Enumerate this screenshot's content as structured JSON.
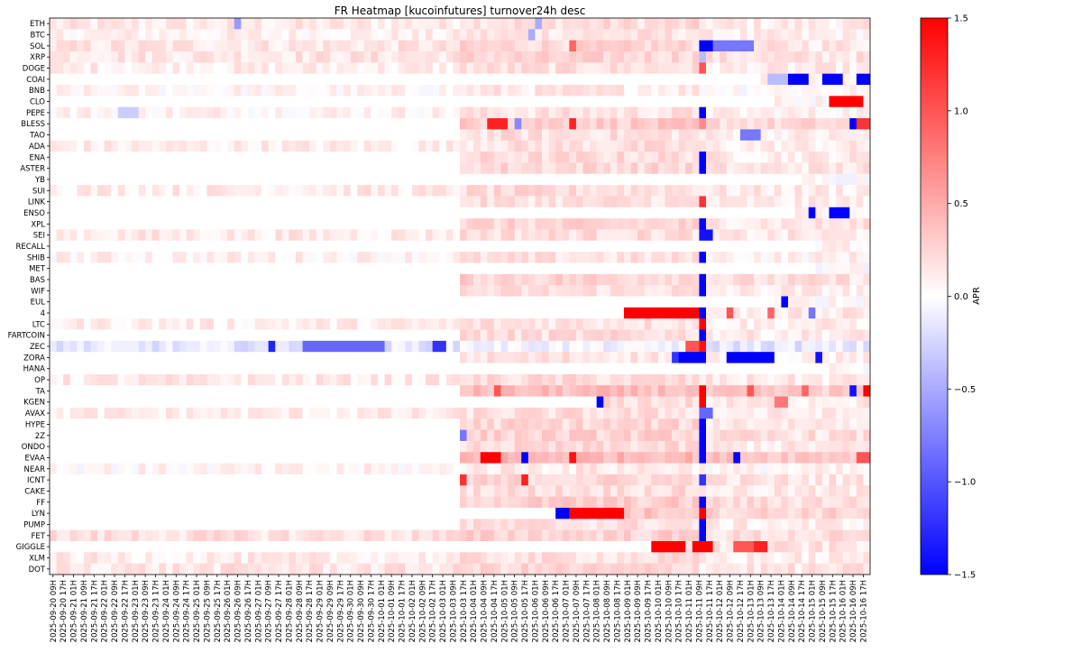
{
  "chart_data": {
    "type": "heatmap",
    "title": "FR Heatmap [kucoinfutures] turnover24h desc",
    "colorbar_label": "APR",
    "color_scale": {
      "min": -1.5,
      "max": 1.5,
      "ticks": [
        "1.5",
        "1.0",
        "0.5",
        "0.0",
        "−0.5",
        "−1.0",
        "−1.5"
      ],
      "tick_values": [
        1.5,
        1.0,
        0.5,
        0.0,
        -0.5,
        -1.0,
        -1.5
      ],
      "low_color": "#0000ff",
      "mid_color": "#ffffff",
      "high_color": "#ff0000"
    },
    "y_labels": [
      "ETH",
      "BTC",
      "SOL",
      "XRP",
      "DOGE",
      "COAI",
      "BNB",
      "CLO",
      "PEPE",
      "BLESS",
      "TAO",
      "ADA",
      "ENA",
      "ASTER",
      "YB",
      "SUI",
      "LINK",
      "ENSO",
      "XPL",
      "SEI",
      "RECALL",
      "SHIB",
      "MET",
      "BAS",
      "WIF",
      "EUL",
      "4",
      "LTC",
      "FARTCOIN",
      "ZEC",
      "ZORA",
      "HANA",
      "OP",
      "TA",
      "KGEN",
      "AVAX",
      "HYPE",
      "2Z",
      "ONDO",
      "EVAA",
      "NEAR",
      "ICNT",
      "CAKE",
      "FF",
      "LYN",
      "PUMP",
      "FET",
      "GIGGLE",
      "XLM",
      "DOT"
    ],
    "x_labels": [
      "2025-09-20 09H",
      "2025-09-20 17H",
      "2025-09-21 01H",
      "2025-09-21 09H",
      "2025-09-21 17H",
      "2025-09-22 01H",
      "2025-09-22 09H",
      "2025-09-22 17H",
      "2025-09-23 01H",
      "2025-09-23 09H",
      "2025-09-23 17H",
      "2025-09-24 01H",
      "2025-09-24 09H",
      "2025-09-24 17H",
      "2025-09-25 01H",
      "2025-09-25 09H",
      "2025-09-25 17H",
      "2025-09-26 01H",
      "2025-09-26 09H",
      "2025-09-26 17H",
      "2025-09-27 01H",
      "2025-09-27 09H",
      "2025-09-27 17H",
      "2025-09-28 01H",
      "2025-09-28 09H",
      "2025-09-28 17H",
      "2025-09-29 01H",
      "2025-09-29 09H",
      "2025-09-29 17H",
      "2025-09-30 01H",
      "2025-09-30 09H",
      "2025-09-30 17H",
      "2025-10-01 01H",
      "2025-10-01 09H",
      "2025-10-01 17H",
      "2025-10-02 01H",
      "2025-10-02 09H",
      "2025-10-02 17H",
      "2025-10-03 01H",
      "2025-10-03 09H",
      "2025-10-03 17H",
      "2025-10-04 01H",
      "2025-10-04 09H",
      "2025-10-04 17H",
      "2025-10-05 01H",
      "2025-10-05 09H",
      "2025-10-05 17H",
      "2025-10-06 01H",
      "2025-10-06 09H",
      "2025-10-06 17H",
      "2025-10-07 01H",
      "2025-10-07 09H",
      "2025-10-07 17H",
      "2025-10-08 01H",
      "2025-10-08 09H",
      "2025-10-08 17H",
      "2025-10-09 01H",
      "2025-10-09 09H",
      "2025-10-09 17H",
      "2025-10-10 01H",
      "2025-10-10 09H",
      "2025-10-10 17H",
      "2025-10-11 01H",
      "2025-10-11 09H",
      "2025-10-11 17H",
      "2025-10-12 01H",
      "2025-10-12 09H",
      "2025-10-12 17H",
      "2025-10-13 01H",
      "2025-10-13 09H",
      "2025-10-13 17H",
      "2025-10-14 01H",
      "2025-10-14 09H",
      "2025-10-14 17H",
      "2025-10-15 01H",
      "2025-10-15 09H",
      "2025-10-15 17H",
      "2025-10-16 01H",
      "2025-10-16 09H",
      "2025-10-16 17H"
    ],
    "x_tick_step": 1,
    "cols_per_tick": 1.5,
    "n_cols": 120,
    "grid": false,
    "base_values": {
      "ETH": 0.12,
      "BTC": 0.08,
      "SOL": 0.15,
      "XRP": 0.16,
      "DOGE": 0.1,
      "COAI": 0.05,
      "BNB": 0.05,
      "CLO": 0.05,
      "PEPE": 0.08,
      "BLESS": 0.22,
      "TAO": 0.1,
      "ADA": 0.1,
      "ENA": 0.12,
      "ASTER": 0.15,
      "YB": 0.02,
      "SUI": 0.12,
      "LINK": 0.1,
      "ENSO": 0.05,
      "XPL": 0.15,
      "SEI": 0.12,
      "RECALL": 0.05,
      "SHIB": 0.08,
      "MET": 0.02,
      "BAS": 0.18,
      "WIF": 0.1,
      "EUL": 0.05,
      "4": 0.12,
      "LTC": 0.1,
      "FARTCOIN": 0.12,
      "ZEC": -0.15,
      "ZORA": 0.08,
      "HANA": 0.02,
      "OP": 0.12,
      "TA": 0.3,
      "KGEN": 0.12,
      "AVAX": 0.1,
      "HYPE": 0.15,
      "2Z": 0.18,
      "ONDO": 0.12,
      "EVAA": 0.35,
      "NEAR": 0.05,
      "ICNT": 0.15,
      "CAKE": 0.12,
      "FF": 0.2,
      "LYN": 0.25,
      "PUMP": 0.1,
      "FET": 0.18,
      "GIGGLE": 0.15,
      "XLM": 0.1,
      "DOT": 0.15
    },
    "listing_col": {
      "ETH": 0,
      "BTC": 0,
      "SOL": 0,
      "XRP": 0,
      "DOGE": 0,
      "COAI": 104,
      "BNB": 1,
      "CLO": 106,
      "PEPE": 0,
      "BLESS": 60,
      "TAO": 60,
      "ADA": 0,
      "ENA": 60,
      "ASTER": 60,
      "YB": 110,
      "SUI": 0,
      "LINK": 60,
      "ENSO": 108,
      "XPL": 60,
      "SEI": 0,
      "RECALL": 112,
      "SHIB": 0,
      "MET": 112,
      "BAS": 60,
      "WIF": 60,
      "EUL": 106,
      "4": 84,
      "LTC": 0,
      "FARTCOIN": 60,
      "ZEC": 0,
      "ZORA": 60,
      "HANA": 114,
      "OP": 0,
      "TA": 60,
      "KGEN": 80,
      "AVAX": 0,
      "HYPE": 60,
      "2Z": 60,
      "ONDO": 60,
      "EVAA": 60,
      "NEAR": 0,
      "ICNT": 60,
      "CAKE": 60,
      "FF": 60,
      "LYN": 74,
      "PUMP": 60,
      "FET": 0,
      "GIGGLE": 88,
      "XLM": 0,
      "DOT": 0
    },
    "hotspots": [
      {
        "row": "ETH",
        "from": 27,
        "to": 28,
        "value": -0.6
      },
      {
        "row": "ETH",
        "from": 71,
        "to": 72,
        "value": -0.5
      },
      {
        "row": "BTC",
        "from": 70,
        "to": 71,
        "value": -0.5
      },
      {
        "row": "SOL",
        "from": 95,
        "to": 97,
        "value": -1.5
      },
      {
        "row": "SOL",
        "from": 97,
        "to": 103,
        "value": -0.8
      },
      {
        "row": "SOL",
        "from": 76,
        "to": 77,
        "value": 0.9
      },
      {
        "row": "XRP",
        "from": 95,
        "to": 96,
        "value": -0.4
      },
      {
        "row": "DOGE",
        "from": 95,
        "to": 96,
        "value": 1.0
      },
      {
        "row": "COAI",
        "from": 108,
        "to": 111,
        "value": -1.5
      },
      {
        "row": "COAI",
        "from": 113,
        "to": 116,
        "value": -1.5
      },
      {
        "row": "COAI",
        "from": 118,
        "to": 120,
        "value": -1.5
      },
      {
        "row": "COAI",
        "from": 105,
        "to": 108,
        "value": -0.4
      },
      {
        "row": "CLO",
        "from": 114,
        "to": 119,
        "value": 1.5
      },
      {
        "row": "PEPE",
        "from": 95,
        "to": 96,
        "value": -1.5
      },
      {
        "row": "PEPE",
        "from": 10,
        "to": 13,
        "value": -0.3
      },
      {
        "row": "BLESS",
        "from": 64,
        "to": 67,
        "value": 1.3
      },
      {
        "row": "BLESS",
        "from": 76,
        "to": 77,
        "value": 1.3
      },
      {
        "row": "BLESS",
        "from": 117,
        "to": 118,
        "value": -1.5
      },
      {
        "row": "BLESS",
        "from": 118,
        "to": 120,
        "value": 1.2
      },
      {
        "row": "BLESS",
        "from": 68,
        "to": 69,
        "value": -0.7
      },
      {
        "row": "BLESS",
        "from": 95,
        "to": 96,
        "value": 0.7
      },
      {
        "row": "TAO",
        "from": 101,
        "to": 104,
        "value": -0.8
      },
      {
        "row": "ENA",
        "from": 95,
        "to": 96,
        "value": -1.5
      },
      {
        "row": "ASTER",
        "from": 95,
        "to": 96,
        "value": -1.5
      },
      {
        "row": "LINK",
        "from": 95,
        "to": 96,
        "value": 1.2
      },
      {
        "row": "ENSO",
        "from": 111,
        "to": 112,
        "value": -1.5
      },
      {
        "row": "ENSO",
        "from": 114,
        "to": 117,
        "value": -1.5
      },
      {
        "row": "XPL",
        "from": 95,
        "to": 96,
        "value": -1.5
      },
      {
        "row": "SEI",
        "from": 95,
        "to": 97,
        "value": -1.4
      },
      {
        "row": "SHIB",
        "from": 95,
        "to": 96,
        "value": -1.5
      },
      {
        "row": "BAS",
        "from": 95,
        "to": 96,
        "value": -1.5
      },
      {
        "row": "WIF",
        "from": 95,
        "to": 96,
        "value": -1.5
      },
      {
        "row": "EUL",
        "from": 107,
        "to": 108,
        "value": -1.5
      },
      {
        "row": "4",
        "from": 84,
        "to": 95,
        "value": 1.5
      },
      {
        "row": "4",
        "from": 99,
        "to": 100,
        "value": 1.0
      },
      {
        "row": "4",
        "from": 105,
        "to": 106,
        "value": 0.9
      },
      {
        "row": "4",
        "from": 111,
        "to": 112,
        "value": -0.8
      },
      {
        "row": "4",
        "from": 95,
        "to": 96,
        "value": -1.5
      },
      {
        "row": "LTC",
        "from": 95,
        "to": 96,
        "value": 1.5
      },
      {
        "row": "FARTCOIN",
        "from": 95,
        "to": 96,
        "value": -1.5
      },
      {
        "row": "ZEC",
        "from": 37,
        "to": 49,
        "value": -0.9
      },
      {
        "row": "ZEC",
        "from": 56,
        "to": 58,
        "value": -1.2
      },
      {
        "row": "ZEC",
        "from": 32,
        "to": 33,
        "value": -1.3
      },
      {
        "row": "ZEC",
        "from": 93,
        "to": 95,
        "value": 1.0
      },
      {
        "row": "ZEC",
        "from": 95,
        "to": 96,
        "value": 1.4
      },
      {
        "row": "ZORA",
        "from": 91,
        "to": 92,
        "value": -1.2
      },
      {
        "row": "ZORA",
        "from": 92,
        "to": 96,
        "value": -1.5
      },
      {
        "row": "ZORA",
        "from": 99,
        "to": 106,
        "value": -1.5
      },
      {
        "row": "ZORA",
        "from": 112,
        "to": 113,
        "value": -1.4
      },
      {
        "row": "TA",
        "from": 95,
        "to": 96,
        "value": 1.5
      },
      {
        "row": "TA",
        "from": 117,
        "to": 118,
        "value": -1.4
      },
      {
        "row": "TA",
        "from": 119,
        "to": 120,
        "value": 1.5
      },
      {
        "row": "TA",
        "from": 65,
        "to": 66,
        "value": 1.0
      },
      {
        "row": "TA",
        "from": 102,
        "to": 103,
        "value": 1.0
      },
      {
        "row": "TA",
        "from": 110,
        "to": 111,
        "value": 0.9
      },
      {
        "row": "KGEN",
        "from": 80,
        "to": 81,
        "value": -1.5
      },
      {
        "row": "KGEN",
        "from": 95,
        "to": 96,
        "value": 1.5
      },
      {
        "row": "KGEN",
        "from": 106,
        "to": 108,
        "value": 0.8
      },
      {
        "row": "AVAX",
        "from": 95,
        "to": 97,
        "value": -0.9
      },
      {
        "row": "HYPE",
        "from": 95,
        "to": 96,
        "value": -1.5
      },
      {
        "row": "2Z",
        "from": 60,
        "to": 61,
        "value": -0.8
      },
      {
        "row": "2Z",
        "from": 95,
        "to": 96,
        "value": -1.5
      },
      {
        "row": "ONDO",
        "from": 95,
        "to": 96,
        "value": -1.5
      },
      {
        "row": "EVAA",
        "from": 63,
        "to": 66,
        "value": 1.5
      },
      {
        "row": "EVAA",
        "from": 69,
        "to": 70,
        "value": -1.5
      },
      {
        "row": "EVAA",
        "from": 76,
        "to": 77,
        "value": 1.4
      },
      {
        "row": "EVAA",
        "from": 95,
        "to": 96,
        "value": -1.5
      },
      {
        "row": "EVAA",
        "from": 100,
        "to": 101,
        "value": -1.5
      },
      {
        "row": "EVAA",
        "from": 118,
        "to": 120,
        "value": 1.0
      },
      {
        "row": "ICNT",
        "from": 60,
        "to": 61,
        "value": 1.2
      },
      {
        "row": "ICNT",
        "from": 69,
        "to": 70,
        "value": 1.3
      },
      {
        "row": "ICNT",
        "from": 95,
        "to": 96,
        "value": -1.2
      },
      {
        "row": "FF",
        "from": 95,
        "to": 96,
        "value": -1.5
      },
      {
        "row": "LYN",
        "from": 74,
        "to": 76,
        "value": -1.5
      },
      {
        "row": "LYN",
        "from": 76,
        "to": 84,
        "value": 1.5
      },
      {
        "row": "LYN",
        "from": 95,
        "to": 96,
        "value": 1.5
      },
      {
        "row": "GIGGLE",
        "from": 88,
        "to": 93,
        "value": 1.5
      },
      {
        "row": "GIGGLE",
        "from": 94,
        "to": 97,
        "value": 1.5
      },
      {
        "row": "GIGGLE",
        "from": 100,
        "to": 103,
        "value": 1.0
      },
      {
        "row": "GIGGLE",
        "from": 103,
        "to": 105,
        "value": 1.3
      },
      {
        "row": "FET",
        "from": 95,
        "to": 96,
        "value": -1.5
      },
      {
        "row": "PUMP",
        "from": 95,
        "to": 96,
        "value": -1.5
      }
    ]
  }
}
